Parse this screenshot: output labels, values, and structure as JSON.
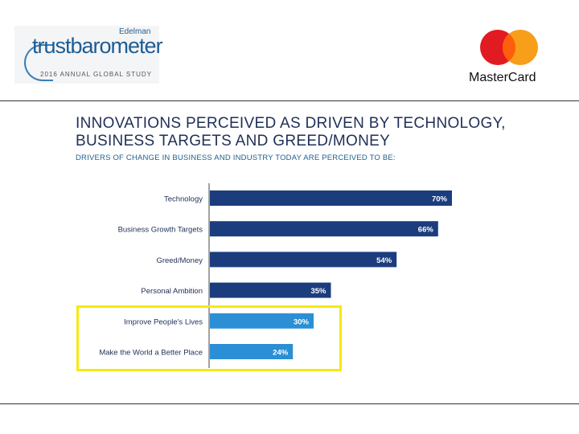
{
  "header": {
    "left_logo": {
      "brand": "Edelman",
      "name": "trustbarometer",
      "caption": "2016 ANNUAL GLOBAL STUDY"
    },
    "right_logo": {
      "name": "MasterCard",
      "colors": {
        "red": "#e21b23",
        "orange": "#f79e1b",
        "overlap": "#fe5f0a"
      }
    }
  },
  "chart_data": {
    "type": "bar",
    "orientation": "horizontal",
    "title": "INNOVATIONS PERCEIVED AS DRIVEN BY TECHNOLOGY, BUSINESS TARGETS AND GREED/MONEY",
    "subtitle": "DRIVERS OF CHANGE IN BUSINESS AND INDUSTRY TODAY ARE PERCEIVED TO BE:",
    "categories": [
      "Technology",
      "Business Growth Targets",
      "Greed/Money",
      "Personal Ambition",
      "Improve People's Lives",
      "Make the World a Better Place"
    ],
    "values": [
      70,
      66,
      54,
      35,
      30,
      24
    ],
    "value_labels": [
      "70%",
      "66%",
      "54%",
      "35%",
      "30%",
      "24%"
    ],
    "xlim": [
      0,
      100
    ],
    "colors": [
      "#1b3d7e",
      "#1b3d7e",
      "#1b3d7e",
      "#1b3d7e",
      "#2a8fd4",
      "#2a8fd4"
    ],
    "highlighted_categories": [
      "Improve People's Lives",
      "Make the World a Better Place"
    ],
    "highlight_color": "#f5ea0d",
    "grid": false
  }
}
